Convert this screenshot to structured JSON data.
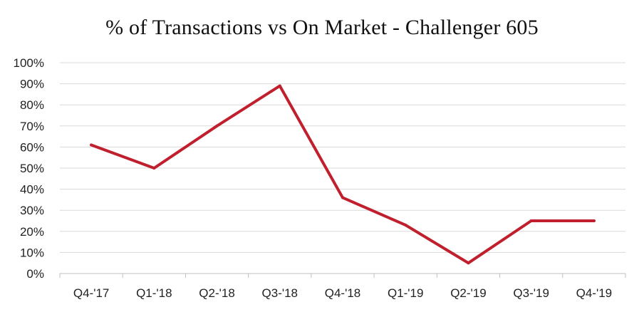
{
  "chart_data": {
    "type": "line",
    "title": "% of Transactions vs On Market - Challenger 605",
    "xlabel": "",
    "ylabel": "",
    "categories": [
      "Q4-'17",
      "Q1-'18",
      "Q2-'18",
      "Q3-'18",
      "Q4-'18",
      "Q1-'19",
      "Q2-'19",
      "Q3-'19",
      "Q4-'19"
    ],
    "series": [
      {
        "values": [
          61,
          50,
          70,
          89,
          36,
          23,
          5,
          25,
          25
        ],
        "color": "#c0202e"
      }
    ],
    "ylim": [
      0,
      100
    ],
    "yticks": [
      "0%",
      "10%",
      "20%",
      "30%",
      "40%",
      "50%",
      "60%",
      "70%",
      "80%",
      "90%",
      "100%"
    ],
    "grid": true,
    "legend": "none"
  }
}
